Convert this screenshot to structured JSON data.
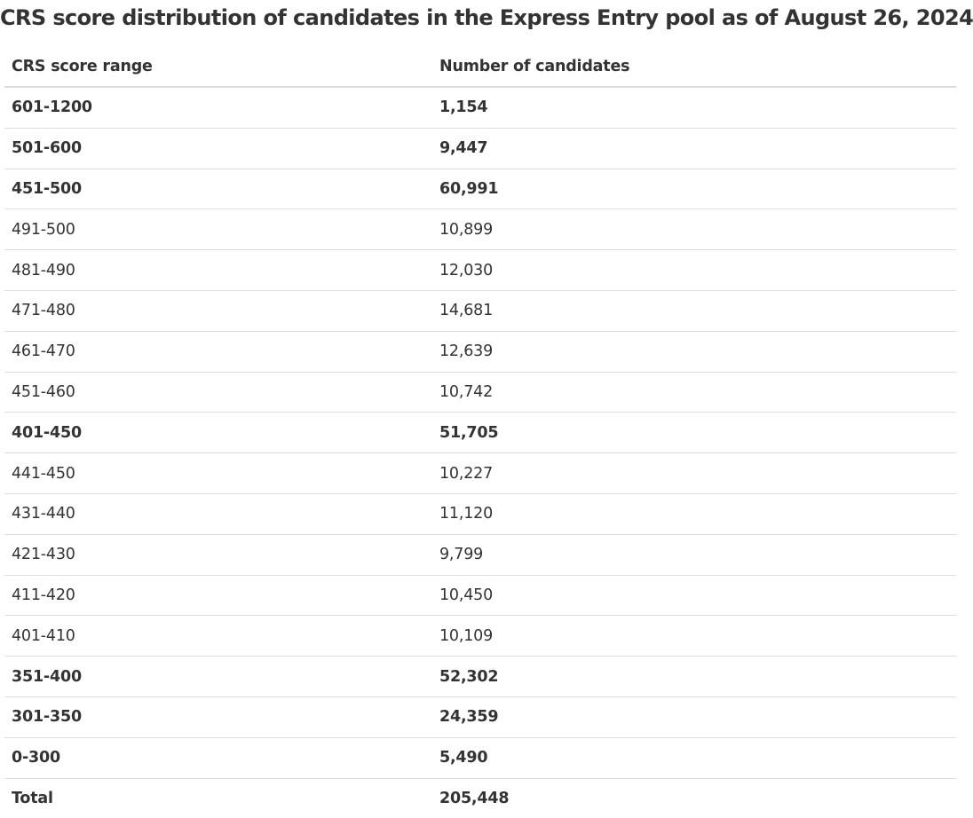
{
  "caption": "CRS score distribution of candidates in the Express Entry pool as of August 26, 2024",
  "table": {
    "headers": [
      "CRS score range",
      "Number of candidates"
    ],
    "rows": [
      {
        "range": "601-1200",
        "count": "1,154"
      },
      {
        "range": "501-600",
        "count": "9,447"
      },
      {
        "range": "451-500",
        "count": "60,991"
      },
      {
        "range": "491-500",
        "count": "10,899"
      },
      {
        "range": "481-490",
        "count": "12,030"
      },
      {
        "range": "471-480",
        "count": "14,681"
      },
      {
        "range": "461-470",
        "count": "12,639"
      },
      {
        "range": "451-460",
        "count": "10,742"
      },
      {
        "range": "401-450",
        "count": "51,705"
      },
      {
        "range": "441-450",
        "count": "10,227"
      },
      {
        "range": "431-440",
        "count": "11,120"
      },
      {
        "range": "421-430",
        "count": "9,799"
      },
      {
        "range": "411-420",
        "count": "10,450"
      },
      {
        "range": "401-410",
        "count": "10,109"
      },
      {
        "range": "351-400",
        "count": "52,302"
      },
      {
        "range": "301-350",
        "count": "24,359"
      },
      {
        "range": "0-300",
        "count": "5,490"
      },
      {
        "range": "Total",
        "count": "205,448"
      }
    ]
  }
}
